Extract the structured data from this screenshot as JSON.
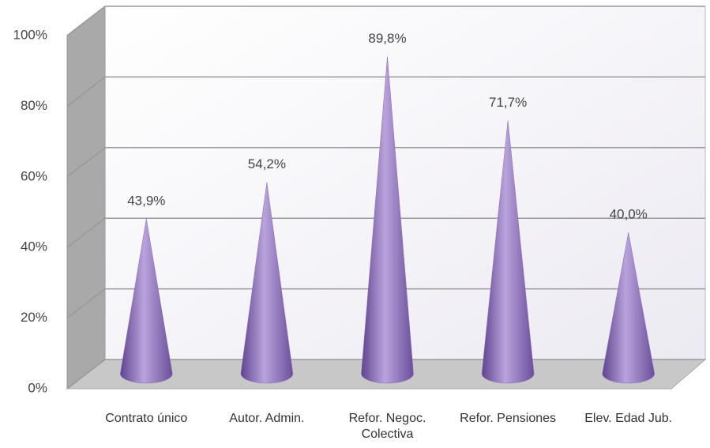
{
  "chart_data": {
    "type": "cone",
    "categories": [
      "Contrato único",
      "Autor. Admin.",
      "Refor. Negoc.\nColectiva",
      "Refor. Pensiones",
      "Elev. Edad Jub."
    ],
    "values": [
      43.9,
      54.2,
      89.8,
      71.7,
      40.0
    ],
    "value_labels": [
      "43,9%",
      "54,2%",
      "89,8%",
      "71,7%",
      "40,0%"
    ],
    "color": "#8a6bb5",
    "ylim": [
      0,
      100
    ],
    "yticks": [
      {
        "value": 0,
        "label": "0%"
      },
      {
        "value": 20,
        "label": "20%"
      },
      {
        "value": 40,
        "label": "40%"
      },
      {
        "value": 60,
        "label": "60%"
      },
      {
        "value": 80,
        "label": "80%"
      },
      {
        "value": 100,
        "label": "100%"
      }
    ],
    "grid": true
  }
}
